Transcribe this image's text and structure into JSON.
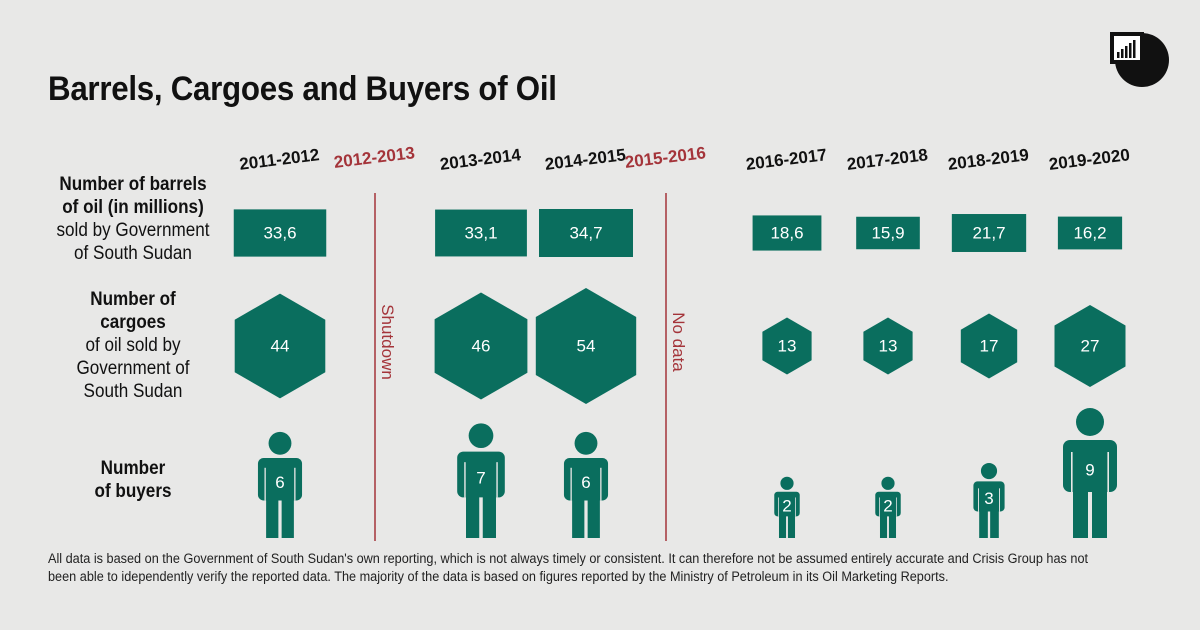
{
  "title": "Barrels, Cargoes and Buyers of Oil",
  "colors": {
    "accent": "#0a6e5e",
    "gap": "#a4343a",
    "background": "#e8e8e7",
    "text": "#111111"
  },
  "logo_icon": "crisis-group-logo-icon",
  "row_labels": {
    "barrels_bold_1": "Number of barrels",
    "barrels_bold_2": "of oil (in millions)",
    "barrels_rest_1": "sold by Government",
    "barrels_rest_2": "of South Sudan",
    "cargoes_bold_1": "Number of",
    "cargoes_bold_2": "cargoes",
    "cargoes_rest_1": "of oil sold by",
    "cargoes_rest_2": "Government of",
    "cargoes_rest_3": "South Sudan",
    "buyers_bold_1": "Number",
    "buyers_bold_2": "of buyers"
  },
  "chart_data": {
    "type": "pictogram",
    "title": "Barrels, Cargoes and Buyers of Oil",
    "periods": [
      "2011-2012",
      "2012-2013",
      "2013-2014",
      "2014-2015",
      "2015-2016",
      "2016-2017",
      "2017-2018",
      "2018-2019",
      "2019-2020"
    ],
    "series": [
      {
        "name": "Number of barrels of oil (in millions) sold by Government of South Sudan",
        "shape": "rectangle",
        "labels": [
          "33,6",
          null,
          "33,1",
          "34,7",
          null,
          "18,6",
          "15,9",
          "21,7",
          "16,2"
        ],
        "values": [
          33.6,
          null,
          33.1,
          34.7,
          null,
          18.6,
          15.9,
          21.7,
          16.2
        ]
      },
      {
        "name": "Number of cargoes of oil sold by Government of South Sudan",
        "shape": "hexagon",
        "labels": [
          "44",
          null,
          "46",
          "54",
          null,
          "13",
          "13",
          "17",
          "27"
        ],
        "values": [
          44,
          null,
          46,
          54,
          null,
          13,
          13,
          17,
          27
        ]
      },
      {
        "name": "Number of buyers",
        "shape": "person",
        "labels": [
          "6",
          null,
          "7",
          "6",
          null,
          "2",
          "2",
          "3",
          "9"
        ],
        "values": [
          6,
          null,
          7,
          6,
          null,
          2,
          2,
          3,
          9
        ]
      }
    ],
    "gaps": [
      {
        "period": "2012-2013",
        "note": "Shutdown"
      },
      {
        "period": "2015-2016",
        "note": "No data"
      }
    ]
  },
  "footnote": "All data is based on the Government of South Sudan's own reporting, which is not always timely or consistent. It can therefore not be assumed entirely accurate and Crisis Group has not been able to idependently verify the reported data. The majority of the data is based on figures reported by the Ministry of Petroleum in its Oil Marketing Reports."
}
